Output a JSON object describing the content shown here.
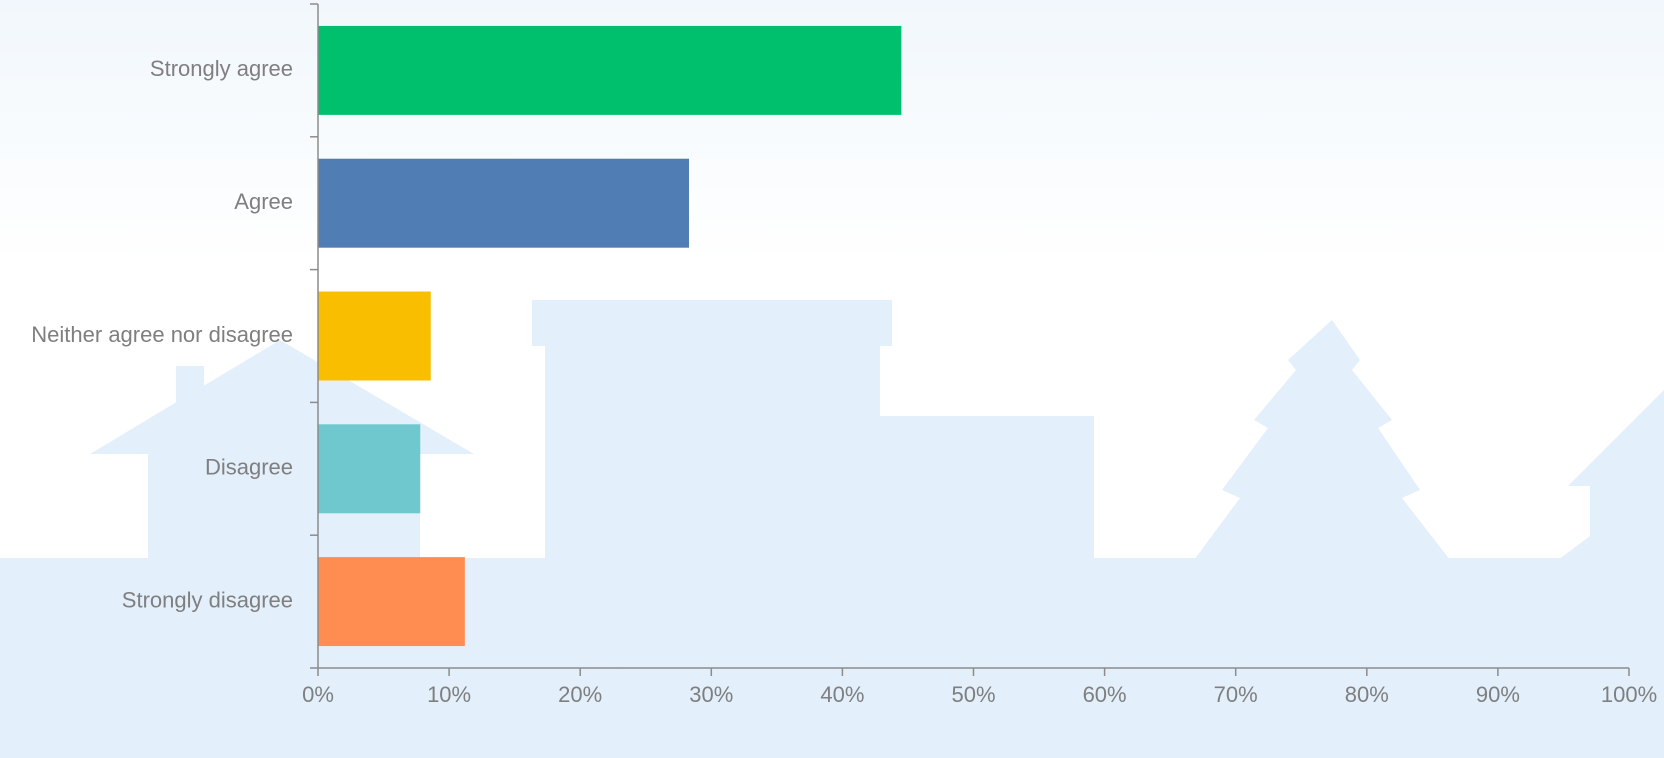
{
  "chart_data": {
    "type": "bar",
    "orientation": "horizontal",
    "categories": [
      "Strongly agree",
      "Agree",
      "Neither agree nor disagree",
      "Disagree",
      "Strongly disagree"
    ],
    "values": [
      44.5,
      28.3,
      8.6,
      7.8,
      11.2
    ],
    "colors": [
      "#00c06e",
      "#507db4",
      "#f9be00",
      "#6ec8cd",
      "#ff8c50"
    ],
    "xlim": [
      0,
      100
    ],
    "x_ticks": [
      "0%",
      "10%",
      "20%",
      "30%",
      "40%",
      "50%",
      "60%",
      "70%",
      "80%",
      "90%",
      "100%"
    ],
    "value_unit": "%",
    "grid": false,
    "legend": "none",
    "title": "",
    "xlabel": "",
    "ylabel": ""
  },
  "background": {
    "description_icon": "silhouette-illustration",
    "silhouette_color": "#e3effa",
    "sky_color": "#f4f9fd"
  }
}
